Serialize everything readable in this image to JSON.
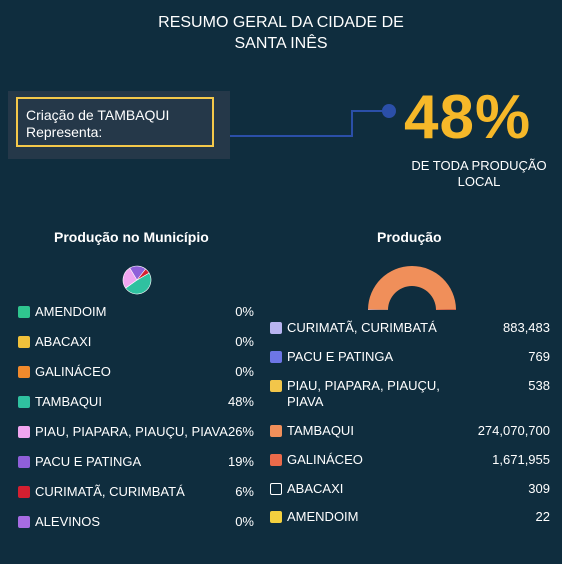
{
  "header": {
    "title_line1": "RESUMO GERAL DA CIDADE DE",
    "title_line2": "SANTA INÊS"
  },
  "callout": {
    "line1": "Criação de TAMBAQUI",
    "line2": "Representa:"
  },
  "highlight": {
    "percent": "48%",
    "caption_line1": "DE TODA PRODUÇÃO",
    "caption_line2": "LOCAL"
  },
  "colors": {
    "background": "#0f2d3e",
    "accent": "#f6b829",
    "connector": "#2b4fa8"
  },
  "chart_data": [
    {
      "type": "pie",
      "title": "Produção no Município",
      "categories": [
        "AMENDOIM",
        "ABACAXI",
        "GALINÁCEO",
        "TAMBAQUI",
        "PIAU, PIAPARA, PIAUÇU, PIAVA",
        "PACU E PATINGA",
        "CURIMATÃ, CURIMBATÁ",
        "ALEVINOS"
      ],
      "labels": [
        "0%",
        "0%",
        "0%",
        "48%",
        "26%",
        "19%",
        "6%",
        "0%"
      ],
      "values": [
        0,
        0,
        0,
        48,
        26,
        19,
        6,
        0
      ],
      "colors": [
        "#2fc58f",
        "#f0c13b",
        "#f08a2c",
        "#2fc1a0",
        "#f0a6f0",
        "#8f5fd9",
        "#d41f30",
        "#a66ce3"
      ]
    },
    {
      "type": "pie",
      "title": "Produção",
      "categories": [
        "CURIMATÃ, CURIMBATÁ",
        "PACU E PATINGA",
        "PIAU, PIAPARA, PIAUÇU, PIAVA",
        "TAMBAQUI",
        "GALINÁCEO",
        "ABACAXI",
        "AMENDOIM"
      ],
      "labels": [
        "883,483",
        "769",
        "538",
        "274,070,700",
        "1,671,955",
        "309",
        "22"
      ],
      "values": [
        883483,
        769,
        538,
        274070700,
        1671955,
        309,
        22
      ],
      "colors": [
        "#b8b4f0",
        "#6d76e6",
        "#f2c64a",
        "#f08f5a",
        "#ea6a4a",
        "#0f2d3e",
        "#f4d03f"
      ],
      "outline_colors": [
        "#b8b4f0",
        "#6d76e6",
        "#f2c64a",
        "#f08f5a",
        "#ea6a4a",
        "#ffffff",
        "#f4d03f"
      ]
    }
  ]
}
